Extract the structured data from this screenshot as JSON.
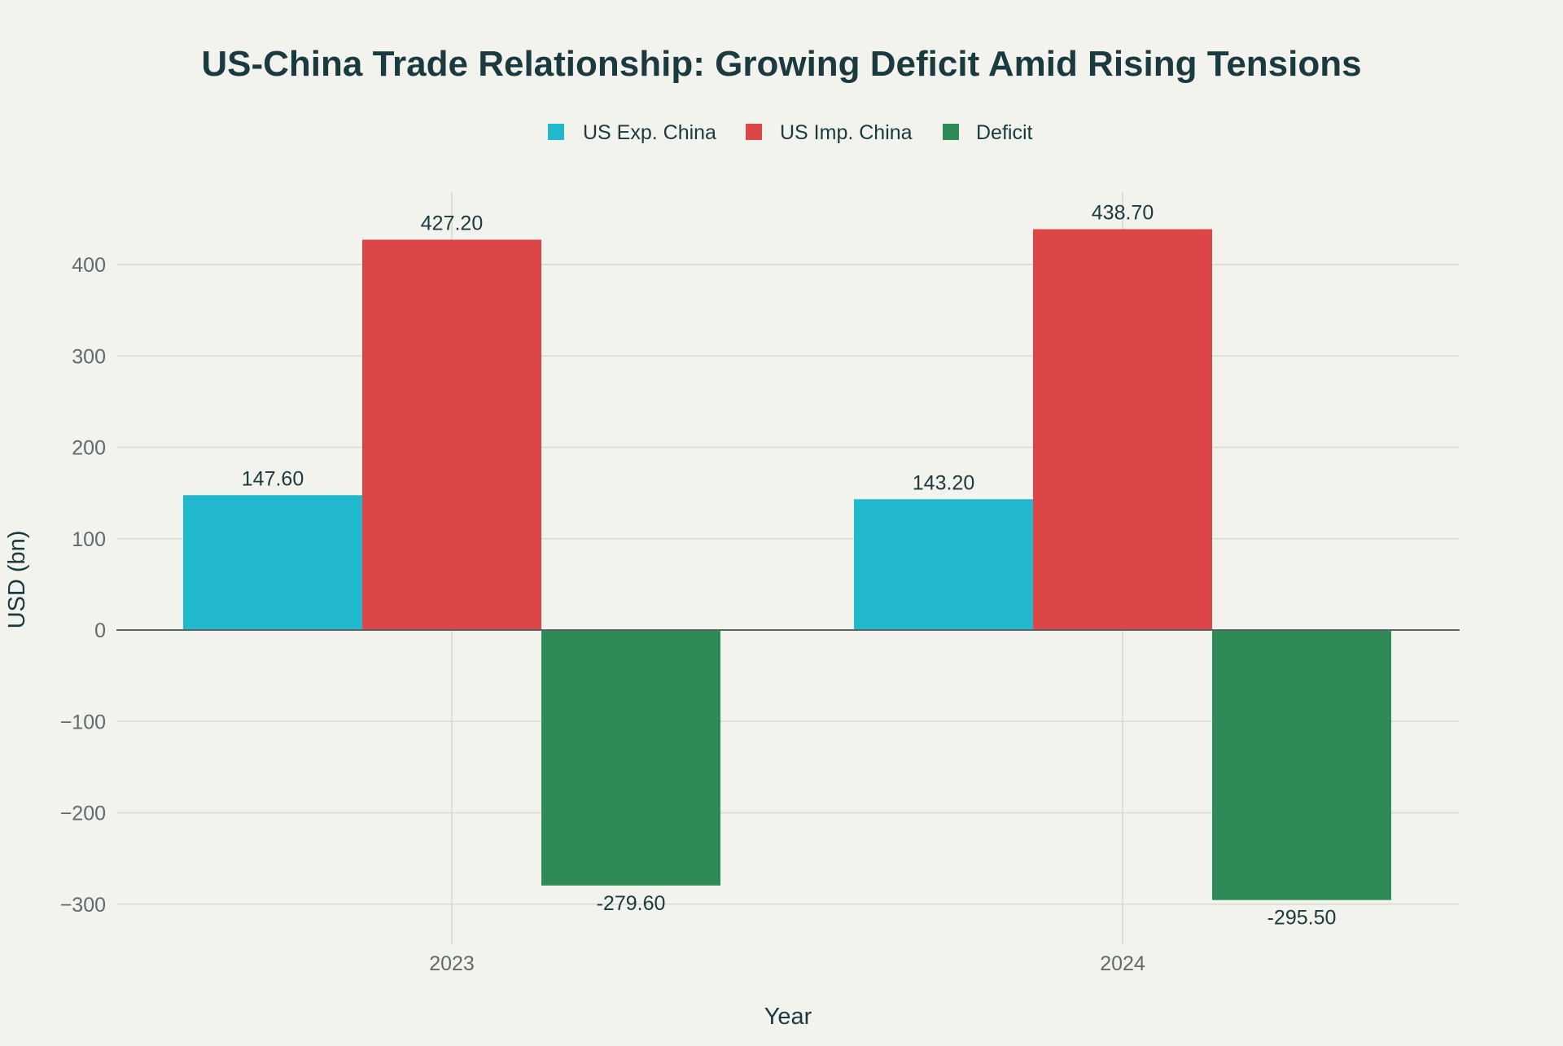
{
  "chart_data": {
    "type": "bar",
    "title": "US-China Trade Relationship: Growing Deficit Amid Rising Tensions",
    "xlabel": "Year",
    "ylabel": "USD (bn)",
    "categories": [
      "2023",
      "2024"
    ],
    "series": [
      {
        "name": "US Exp. China",
        "color": "#21b8cd",
        "values": [
          147.6,
          143.2
        ],
        "labels": [
          "147.60",
          "143.20"
        ]
      },
      {
        "name": "US Imp. China",
        "color": "#dc4646",
        "values": [
          427.2,
          438.7
        ],
        "labels": [
          "427.20",
          "438.70"
        ]
      },
      {
        "name": "Deficit",
        "color": "#2e8b57",
        "values": [
          -279.6,
          -295.5
        ],
        "labels": [
          "-279.60",
          "-295.50"
        ]
      }
    ],
    "yticks": [
      400,
      300,
      200,
      100,
      0,
      -100,
      -200,
      -300
    ],
    "ytick_labels": [
      "400",
      "300",
      "200",
      "100",
      "0",
      "−100",
      "−200",
      "−300"
    ],
    "ylim": [
      -340,
      480
    ],
    "grid": true,
    "legend_position": "top-center"
  }
}
